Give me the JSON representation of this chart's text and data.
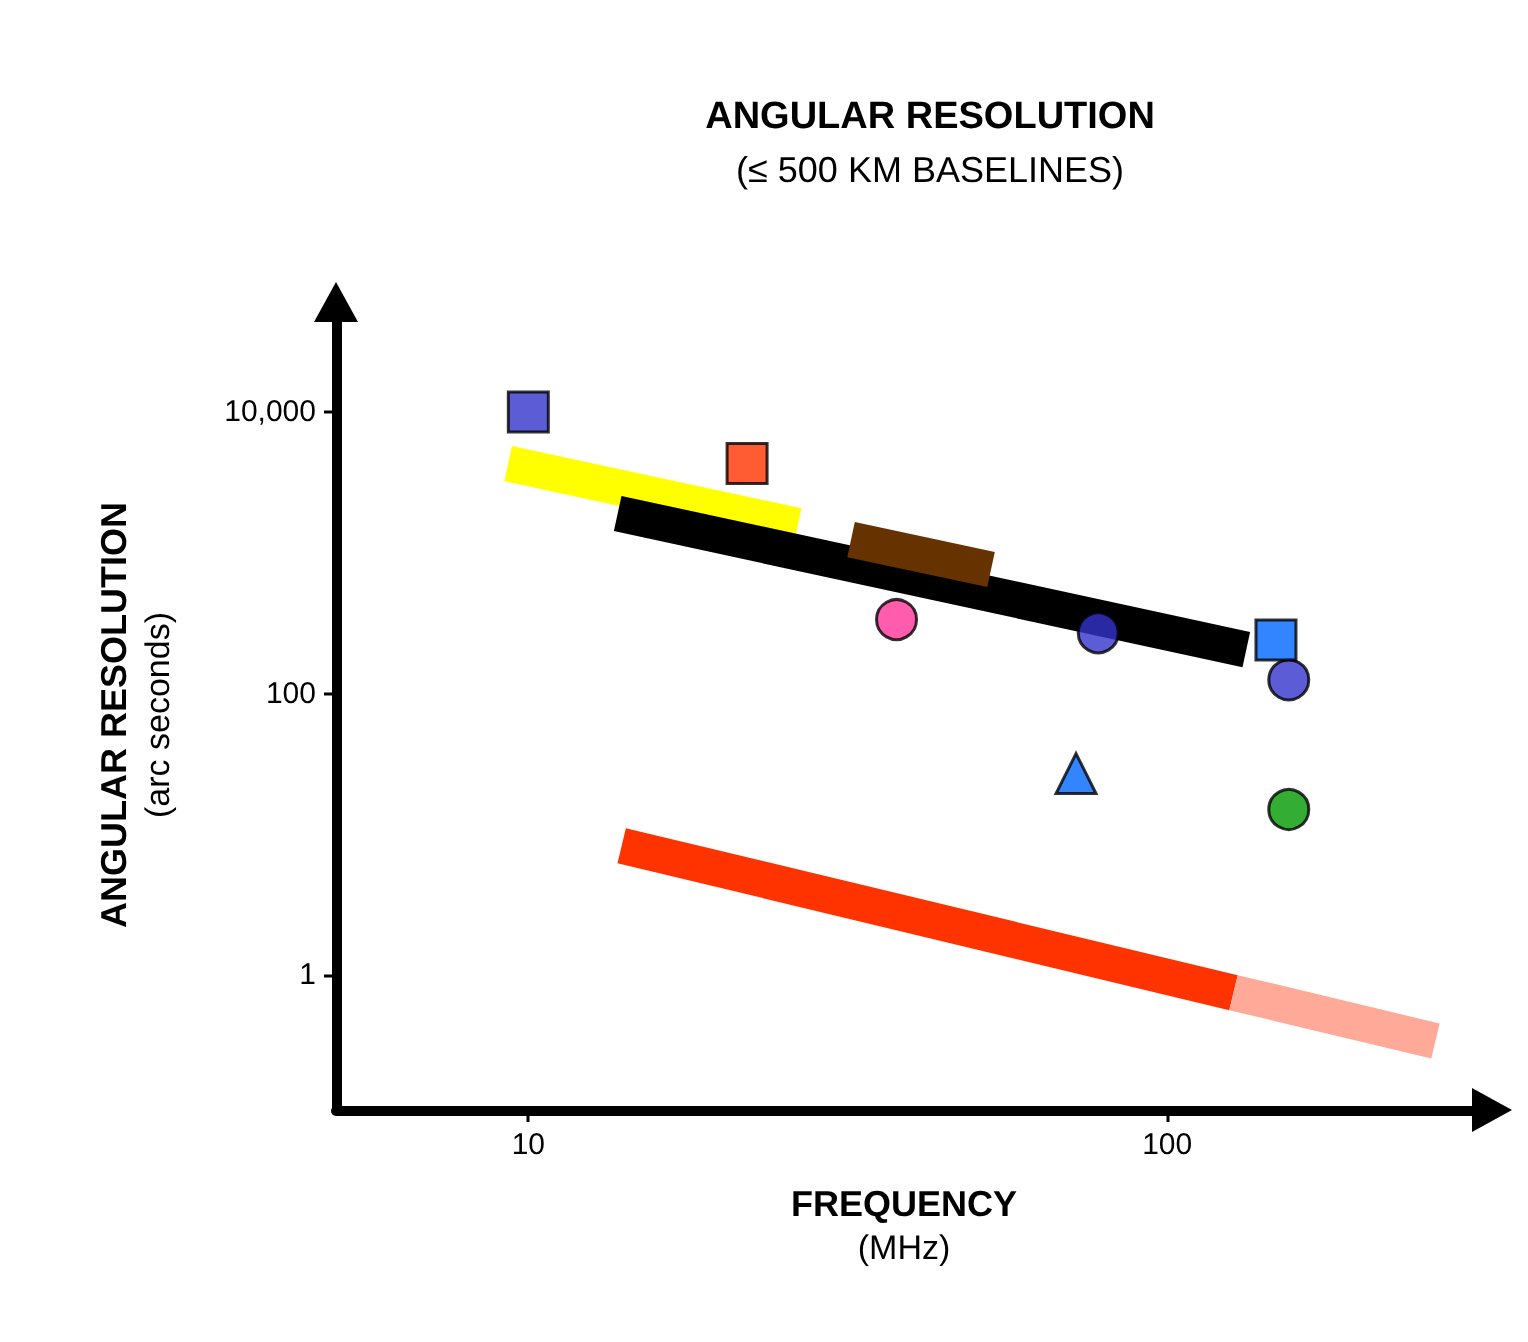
{
  "chart_data": {
    "type": "scatter",
    "title": "ANGULAR RESOLUTION",
    "subtitle": "(≤ 500 KM BASELINES)",
    "xlabel": "FREQUENCY\n(MHz)",
    "ylabel": "ANGULAR RESOLUTION\n(arc seconds)",
    "log": "xy",
    "xlim": [
      5,
      300
    ],
    "ylim": [
      0.11,
      45000
    ],
    "xticks": [
      10,
      100
    ],
    "yticks": [
      1,
      100,
      {
        "value": 10000,
        "label": "10,000"
      }
    ],
    "grid": false,
    "series": [
      {
        "type": "line",
        "marker": "none",
        "color": "#ffff00",
        "x": [
          9.3,
          26.4
        ],
        "values": [
          4300,
          1550
        ]
      },
      {
        "type": "line",
        "marker": "none",
        "color": "#000000",
        "x": [
          13.8,
          133
        ],
        "values": [
          1900,
          205
        ]
      },
      {
        "type": "line",
        "marker": "none",
        "color": "#663300",
        "x": [
          32,
          53
        ],
        "values": [
          1240,
          760
        ]
      },
      {
        "type": "line",
        "marker": "none",
        "color": "#ff3300",
        "x": [
          14,
          127
        ],
        "values": [
          8.3,
          0.75
        ]
      },
      {
        "type": "line",
        "marker": "none",
        "color": "#ffaa99",
        "x": [
          127,
          263
        ],
        "values": [
          0.75,
          0.34
        ]
      },
      {
        "marker": "square",
        "color": "#3333cc",
        "x": [
          10
        ],
        "values": [
          10000
        ]
      },
      {
        "marker": "square",
        "color": "#ff3300",
        "x": [
          22
        ],
        "values": [
          4300
        ]
      },
      {
        "marker": "circle",
        "color": "#ff3399",
        "x": [
          37.7
        ],
        "values": [
          335
        ]
      },
      {
        "marker": "circle",
        "color": "#3333cc",
        "x": [
          78,
          155
        ],
        "values": [
          270,
          125
        ]
      },
      {
        "marker": "triangle",
        "color": "#0066ff",
        "x": [
          72
        ],
        "values": [
          27
        ]
      },
      {
        "marker": "square",
        "color": "#0066ff",
        "x": [
          148
        ],
        "values": [
          240
        ]
      },
      {
        "marker": "circle",
        "color": "#009900",
        "x": [
          155
        ],
        "values": [
          15
        ]
      }
    ]
  }
}
